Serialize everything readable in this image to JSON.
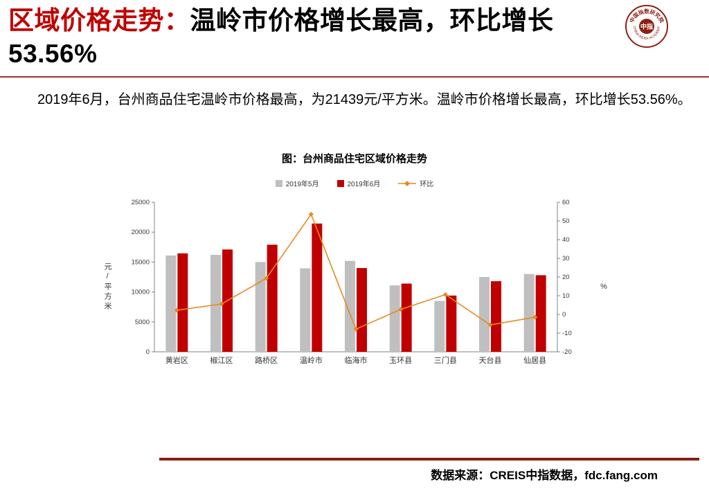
{
  "header": {
    "title_red": "区域价格走势：",
    "title_black": "温岭市价格增长最高，环比增长53.56%"
  },
  "logo": {
    "center_text": "中指",
    "top_arc_text": "中国指数研究院",
    "bottom_arc_text": "CHINA INDEX ACADEMY",
    "color": "#8d1f12"
  },
  "body": {
    "paragraph": "2019年6月，台州商品住宅温岭市价格最高，为21439元/平方米。温岭市价格增长最高，环比增长53.56%。"
  },
  "footer": {
    "source": "数据来源：CREIS中指数据，fdc.fang.com"
  },
  "chart_data": {
    "type": "bar",
    "title": "图：台州商品住宅区域价格走势",
    "categories": [
      "黄岩区",
      "椒江区",
      "路桥区",
      "温岭市",
      "临海市",
      "玉环县",
      "三门县",
      "天台县",
      "仙居县"
    ],
    "series": [
      {
        "name": "2019年5月",
        "type": "bar",
        "color": "#bfbfbf",
        "values": [
          16100,
          16200,
          15000,
          13960,
          15200,
          11100,
          8500,
          12500,
          13000
        ]
      },
      {
        "name": "2019年6月",
        "type": "bar",
        "color": "#c00000",
        "values": [
          16450,
          17100,
          17900,
          21439,
          14000,
          11400,
          9400,
          11800,
          12800
        ]
      },
      {
        "name": "环比",
        "type": "line",
        "color": "#e7891f",
        "axis": "right",
        "values": [
          2.2,
          5.6,
          19.3,
          53.56,
          -7.9,
          2.7,
          10.6,
          -5.6,
          -1.5
        ]
      }
    ],
    "left_axis": {
      "label": "元/平方米",
      "min": 0,
      "max": 25000,
      "ticks": [
        0,
        5000,
        10000,
        15000,
        20000,
        25000
      ]
    },
    "right_axis": {
      "label": "%",
      "min": -20,
      "max": 60,
      "ticks": [
        -20,
        -10,
        0,
        10,
        20,
        30,
        40,
        50,
        60
      ]
    },
    "grid": false,
    "legend_position": "top"
  }
}
